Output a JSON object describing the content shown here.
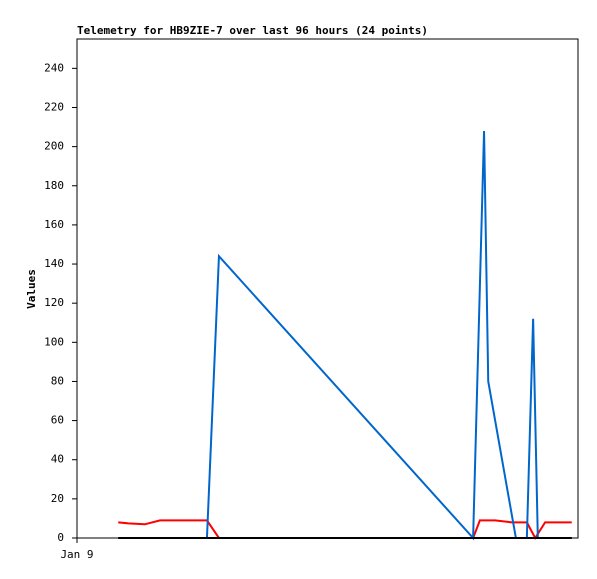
{
  "chart_data": {
    "type": "line",
    "title": "Telemetry for HB9ZIE-7 over last 96 hours (24 points)",
    "y_label": "Values",
    "xlim": [
      0,
      96
    ],
    "xticks": [
      {
        "value": 0,
        "label": "Jan 9"
      }
    ],
    "ylim": [
      0,
      255
    ],
    "yticks": [
      0,
      20,
      40,
      60,
      80,
      100,
      120,
      140,
      160,
      180,
      200,
      220,
      240
    ],
    "series": [
      {
        "color": "#ff0000",
        "x": [
          7.9,
          9.8,
          13.0,
          15.9,
          24.9,
          27.2,
          75.9,
          77.2,
          80.1,
          83.3,
          86.2,
          87.8,
          89.7,
          94.8
        ],
        "values": [
          8,
          7.5,
          7,
          9,
          9,
          0,
          0,
          9,
          9,
          8,
          8,
          0,
          8,
          8
        ]
      },
      {
        "color": "#0066cc",
        "x": [
          7.9,
          24.9,
          27.2,
          75.9,
          78.0,
          78.8,
          84.1,
          86.2,
          87.4,
          88.3,
          94.8
        ],
        "values": [
          0,
          0,
          144,
          0,
          208,
          80,
          0,
          0,
          112,
          0,
          0
        ]
      },
      {
        "color": "#000000",
        "x": [
          7.9,
          94.8
        ],
        "values": [
          0,
          0
        ]
      }
    ]
  }
}
